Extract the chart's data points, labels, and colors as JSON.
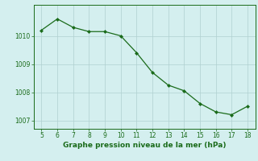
{
  "x": [
    5,
    6,
    7,
    8,
    9,
    10,
    11,
    12,
    13,
    14,
    15,
    16,
    17,
    18
  ],
  "y": [
    1010.2,
    1010.6,
    1010.3,
    1010.15,
    1010.15,
    1010.0,
    1009.4,
    1008.7,
    1008.25,
    1008.05,
    1007.6,
    1007.3,
    1007.2,
    1007.5
  ],
  "line_color": "#1a6b1a",
  "marker": "D",
  "marker_size": 2.0,
  "bg_color": "#d4efef",
  "grid_color": "#b0d0d0",
  "xlabel": "Graphe pression niveau de la mer (hPa)",
  "xlabel_color": "#1a6b1a",
  "xlim": [
    4.5,
    18.5
  ],
  "ylim": [
    1006.7,
    1011.1
  ],
  "yticks": [
    1007,
    1008,
    1009,
    1010
  ],
  "xticks": [
    5,
    6,
    7,
    8,
    9,
    10,
    11,
    12,
    13,
    14,
    15,
    16,
    17,
    18
  ],
  "tick_color": "#1a6b1a",
  "tick_fontsize": 5.5,
  "xlabel_fontsize": 6.5,
  "linewidth": 0.9
}
